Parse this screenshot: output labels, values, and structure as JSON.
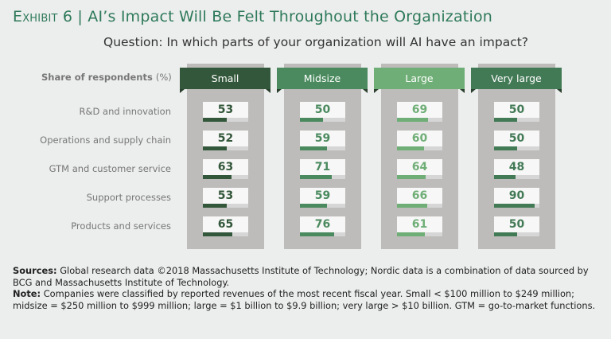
{
  "title": {
    "exhibit": "Exhibit 6",
    "separator": "|",
    "text": "AI’s Impact Will Be Felt Throughout the Organization"
  },
  "question": "Question: In which parts of your organization will AI have an impact?",
  "chart_data": {
    "type": "table",
    "unit_label": "Share of respondents",
    "unit": "(%)",
    "categories": [
      "R&D and innovation",
      "Operations and supply chain",
      "GTM and customer service",
      "Support processes",
      "Products and services"
    ],
    "series": [
      {
        "name": "Small",
        "color": "#33573a",
        "values": [
          53,
          52,
          63,
          53,
          65
        ]
      },
      {
        "name": "Midsize",
        "color": "#4a8a5e",
        "values": [
          50,
          59,
          71,
          59,
          76
        ]
      },
      {
        "name": "Large",
        "color": "#6fae76",
        "values": [
          69,
          60,
          64,
          66,
          61
        ]
      },
      {
        "name": "Very large",
        "color": "#437a56",
        "values": [
          50,
          50,
          48,
          90,
          50
        ]
      }
    ],
    "ylim": [
      0,
      100
    ]
  },
  "footer": {
    "sources_label": "Sources:",
    "sources_text": "Global research data ©2018 Massachusetts Institute of Technology; Nordic data is a combination of data sourced by BCG and Massachusetts Institute of Technology.",
    "note_label": "Note:",
    "note_text": "Companies were classified by reported revenues of the most recent fiscal year. Small < $100 million to $249 million; midsize = $250 million to $999 million; large = $1 billion to $9.9 billion; very large > $10 billion. GTM = go-to-market functions."
  }
}
